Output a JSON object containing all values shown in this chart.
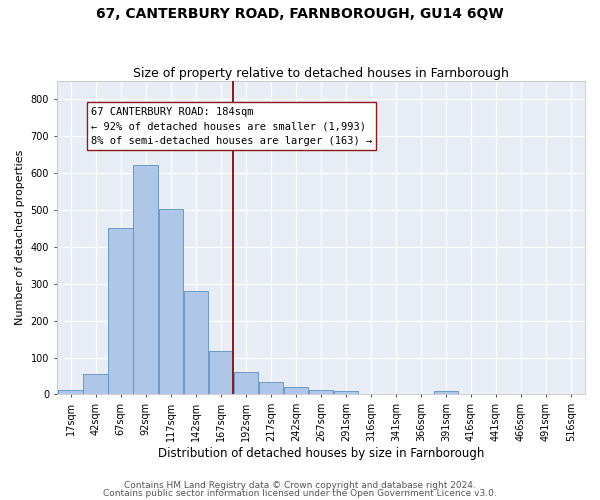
{
  "title": "67, CANTERBURY ROAD, FARNBOROUGH, GU14 6QW",
  "subtitle": "Size of property relative to detached houses in Farnborough",
  "xlabel": "Distribution of detached houses by size in Farnborough",
  "ylabel": "Number of detached properties",
  "bar_labels": [
    "17sqm",
    "42sqm",
    "67sqm",
    "92sqm",
    "117sqm",
    "142sqm",
    "167sqm",
    "192sqm",
    "217sqm",
    "242sqm",
    "267sqm",
    "291sqm",
    "316sqm",
    "341sqm",
    "366sqm",
    "391sqm",
    "416sqm",
    "441sqm",
    "466sqm",
    "491sqm",
    "516sqm"
  ],
  "bar_values": [
    13,
    55,
    450,
    622,
    502,
    280,
    118,
    62,
    35,
    20,
    11,
    9,
    0,
    0,
    0,
    8,
    0,
    0,
    0,
    0,
    0
  ],
  "bar_color": "#aec6e8",
  "bar_edge_color": "#5a8fc0",
  "annotation_title": "67 CANTERBURY ROAD: 184sqm",
  "annotation_line1": "← 92% of detached houses are smaller (1,993)",
  "annotation_line2": "8% of semi-detached houses are larger (163) →",
  "vline_color": "#8b1a1a",
  "ylim": [
    0,
    850
  ],
  "yticks": [
    0,
    100,
    200,
    300,
    400,
    500,
    600,
    700,
    800
  ],
  "background_color": "#e8edf5",
  "grid_color": "#ffffff",
  "title_fontsize": 10,
  "subtitle_fontsize": 9,
  "ylabel_fontsize": 8,
  "xlabel_fontsize": 8.5,
  "tick_fontsize": 7,
  "annotation_fontsize": 7.5,
  "footnote_fontsize": 6.5,
  "footnote1": "Contains HM Land Registry data © Crown copyright and database right 2024.",
  "footnote2": "Contains public sector information licensed under the Open Government Licence v3.0."
}
